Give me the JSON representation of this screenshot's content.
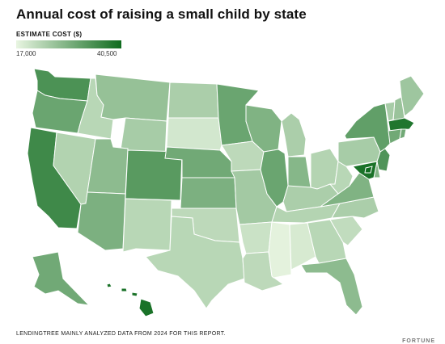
{
  "title": "Annual cost of raising a small child by state",
  "legend": {
    "label": "ESTIMATE COST ($)",
    "min": "17,000",
    "max": "40,500",
    "min_color": "#e8f5e1",
    "max_color": "#0f6b1e"
  },
  "footer": "LENDINGTREE MAINLY ANALYZED DATA FROM 2024 FOR THIS REPORT.",
  "brand": "FORTUNE",
  "chart_data": {
    "type": "choropleth",
    "value_scale": [
      17000,
      40500
    ],
    "states": [
      {
        "state": "WA",
        "level": 0.72
      },
      {
        "state": "OR",
        "level": 0.58
      },
      {
        "state": "CA",
        "level": 0.78
      },
      {
        "state": "ID",
        "level": 0.22
      },
      {
        "state": "NV",
        "level": 0.25
      },
      {
        "state": "MT",
        "level": 0.38
      },
      {
        "state": "WY",
        "level": 0.3
      },
      {
        "state": "UT",
        "level": 0.42
      },
      {
        "state": "AZ",
        "level": 0.5
      },
      {
        "state": "CO",
        "level": 0.66
      },
      {
        "state": "NM",
        "level": 0.22
      },
      {
        "state": "ND",
        "level": 0.28
      },
      {
        "state": "SD",
        "level": 0.1
      },
      {
        "state": "NE",
        "level": 0.55
      },
      {
        "state": "KS",
        "level": 0.5
      },
      {
        "state": "OK",
        "level": 0.2
      },
      {
        "state": "TX",
        "level": 0.22
      },
      {
        "state": "MN",
        "level": 0.58
      },
      {
        "state": "IA",
        "level": 0.2
      },
      {
        "state": "MO",
        "level": 0.32
      },
      {
        "state": "AR",
        "level": 0.14
      },
      {
        "state": "LA",
        "level": 0.2
      },
      {
        "state": "WI",
        "level": 0.48
      },
      {
        "state": "IL",
        "level": 0.58
      },
      {
        "state": "MI",
        "level": 0.28
      },
      {
        "state": "IN",
        "level": 0.45
      },
      {
        "state": "OH",
        "level": 0.24
      },
      {
        "state": "KY",
        "level": 0.28
      },
      {
        "state": "TN",
        "level": 0.24
      },
      {
        "state": "MS",
        "level": 0.02
      },
      {
        "state": "AL",
        "level": 0.08
      },
      {
        "state": "GA",
        "level": 0.22
      },
      {
        "state": "FL",
        "level": 0.42
      },
      {
        "state": "SC",
        "level": 0.18
      },
      {
        "state": "NC",
        "level": 0.28
      },
      {
        "state": "VA",
        "level": 0.48
      },
      {
        "state": "WV",
        "level": 0.22
      },
      {
        "state": "PA",
        "level": 0.3
      },
      {
        "state": "NY",
        "level": 0.62
      },
      {
        "state": "VT",
        "level": 0.3
      },
      {
        "state": "NH",
        "level": 0.36
      },
      {
        "state": "ME",
        "level": 0.34
      },
      {
        "state": "MA",
        "level": 0.92
      },
      {
        "state": "CT",
        "level": 0.55
      },
      {
        "state": "RI",
        "level": 0.55
      },
      {
        "state": "NJ",
        "level": 0.7
      },
      {
        "state": "DE",
        "level": 0.45
      },
      {
        "state": "MD",
        "level": 0.95
      },
      {
        "state": "DC",
        "level": 1.0
      },
      {
        "state": "AK",
        "level": 0.55
      },
      {
        "state": "HI",
        "level": 0.95
      }
    ]
  }
}
